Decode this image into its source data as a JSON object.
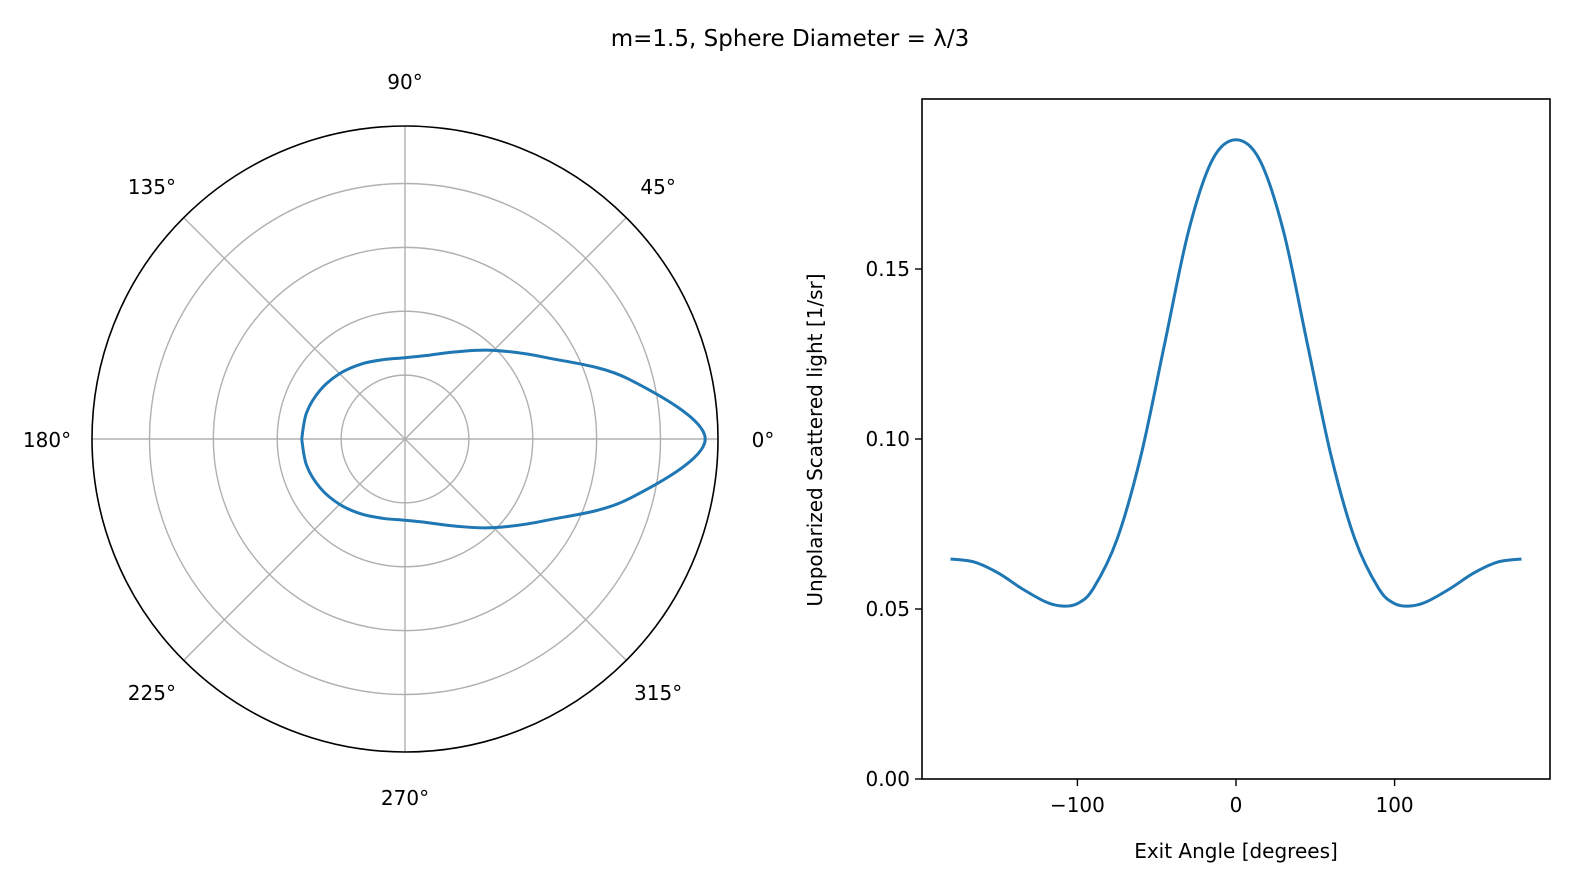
{
  "figure": {
    "title": "m=1.5, Sphere Diameter = λ/3"
  },
  "colors": {
    "series": "#1f77b4",
    "grid": "#b0b0b0",
    "axes": "#000000"
  },
  "chart_data": [
    {
      "type": "polar-line",
      "title": "",
      "angle_unit": "degrees",
      "angle_ticks": [
        0,
        45,
        90,
        135,
        180,
        225,
        270,
        315
      ],
      "angle_tick_labels": [
        "0°",
        "45°",
        "90°",
        "135°",
        "180°",
        "225°",
        "270°",
        "315°"
      ],
      "radial_grid": [
        0.04,
        0.08,
        0.12,
        0.16
      ],
      "rlim": [
        0,
        0.196
      ],
      "grid": true,
      "series": [
        {
          "theta": [
            -180,
            -165,
            -150,
            -135,
            -120,
            -105,
            -90,
            -75,
            -60,
            -45,
            -30,
            -15,
            0,
            15,
            30,
            45,
            60,
            75,
            90,
            105,
            120,
            135,
            150,
            165,
            180
          ],
          "r": [
            0.0647,
            0.0638,
            0.0613,
            0.0579,
            0.0543,
            0.0515,
            0.0509,
            0.0542,
            0.063,
            0.0785,
            0.102,
            0.145,
            0.188,
            0.145,
            0.102,
            0.0785,
            0.063,
            0.0542,
            0.0509,
            0.0515,
            0.0543,
            0.0579,
            0.0613,
            0.0638,
            0.0647
          ]
        }
      ]
    },
    {
      "type": "line",
      "title": "",
      "xlabel": "Exit Angle [degrees]",
      "ylabel": "Unpolarized Scattered light [1/sr]",
      "xlim": [
        -198,
        198
      ],
      "ylim": [
        0,
        0.2
      ],
      "xticks": [
        -100,
        0,
        100
      ],
      "xtick_labels": [
        "−100",
        "0",
        "100"
      ],
      "yticks": [
        0.0,
        0.05,
        0.1,
        0.15
      ],
      "ytick_labels": [
        "0.00",
        "0.05",
        "0.10",
        "0.15"
      ],
      "grid": false,
      "series": [
        {
          "x": [
            -180,
            -165,
            -150,
            -135,
            -120,
            -110,
            -100,
            -90,
            -75,
            -60,
            -45,
            -30,
            -15,
            0,
            15,
            30,
            45,
            60,
            75,
            90,
            100,
            110,
            120,
            135,
            150,
            165,
            180
          ],
          "y": [
            0.0647,
            0.0638,
            0.0606,
            0.056,
            0.0521,
            0.0509,
            0.0516,
            0.056,
            0.0705,
            0.095,
            0.128,
            0.161,
            0.182,
            0.188,
            0.182,
            0.161,
            0.128,
            0.095,
            0.0705,
            0.056,
            0.0516,
            0.0509,
            0.0521,
            0.056,
            0.0606,
            0.0638,
            0.0647
          ]
        }
      ]
    }
  ]
}
